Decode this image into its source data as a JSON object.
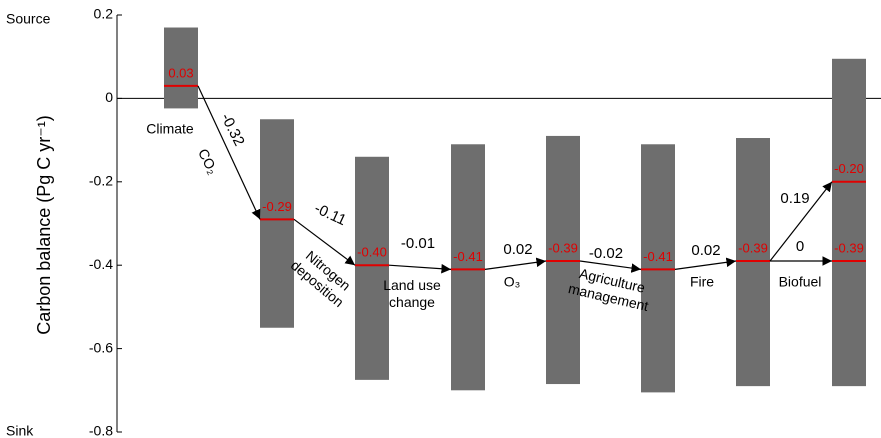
{
  "chart_data": {
    "type": "range-waterfall",
    "ylabel": "Carbon balance (Pg C yr⁻¹)",
    "top_label": "Source",
    "bottom_label": "Sink",
    "ylim": [
      -0.8,
      0.2
    ],
    "yticks": [
      0.2,
      0,
      -0.2,
      -0.4,
      -0.6,
      -0.8
    ],
    "bar_color": "#6e6e6e",
    "median_color": "#e00000",
    "bars": [
      {
        "low": -0.024,
        "high": 0.17,
        "medians": [
          {
            "value": 0.03,
            "value_label": "0.03",
            "label": [
              "Climate"
            ]
          }
        ]
      },
      {
        "low": -0.55,
        "high": -0.05,
        "medians": [
          {
            "value": -0.29,
            "value_label": "-0.29",
            "change": -0.32,
            "label": [
              "CO₂"
            ]
          }
        ]
      },
      {
        "low": -0.675,
        "high": -0.14,
        "medians": [
          {
            "value": -0.4,
            "value_label": "-0.40",
            "change": -0.11,
            "label": [
              "Nitrogen",
              "deposition"
            ]
          }
        ]
      },
      {
        "low": -0.7,
        "high": -0.11,
        "medians": [
          {
            "value": -0.41,
            "value_label": "-0.41",
            "change": -0.01,
            "label": [
              "Land use",
              "change"
            ]
          }
        ]
      },
      {
        "low": -0.685,
        "high": -0.09,
        "medians": [
          {
            "value": -0.39,
            "value_label": "-0.39",
            "change": 0.02,
            "label": [
              "O₃"
            ]
          }
        ]
      },
      {
        "low": -0.705,
        "high": -0.11,
        "medians": [
          {
            "value": -0.41,
            "value_label": "-0.41",
            "change": -0.02,
            "label": [
              "Agriculture",
              "management"
            ]
          }
        ]
      },
      {
        "low": -0.69,
        "high": -0.095,
        "medians": [
          {
            "value": -0.39,
            "value_label": "-0.39",
            "change": 0.02,
            "label": [
              "Fire"
            ]
          }
        ]
      },
      {
        "low": -0.69,
        "high": 0.095,
        "medians": [
          {
            "value": -0.2,
            "value_label": "-0.20",
            "change": 0.19
          },
          {
            "value": -0.39,
            "value_label": "-0.39",
            "change": 0,
            "label": [
              "Biofuel"
            ]
          }
        ]
      }
    ]
  }
}
